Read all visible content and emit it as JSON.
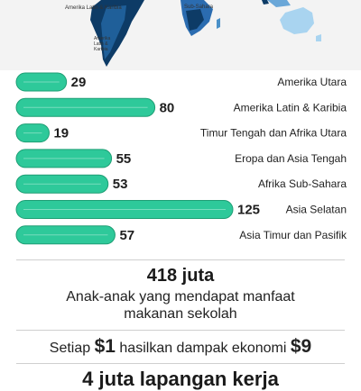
{
  "map": {
    "labels": [
      "Amerika Latin & Karibia",
      "Sub-Sahara",
      "Amerika Latin & Karibia"
    ]
  },
  "colors": {
    "bar": "#2ec99a",
    "bar_edge": "#1e9e74"
  },
  "chart_data": {
    "type": "bar",
    "orientation": "horizontal",
    "title": "",
    "xlabel": "",
    "ylabel": "",
    "categories": [
      "Amerika Utara",
      "Amerika Latin & Karibia",
      "Timur Tengah dan Afrika Utara",
      "Eropa dan Asia Tengah",
      "Afrika Sub-Sahara",
      "Asia Selatan",
      "Asia Timur dan Pasifik"
    ],
    "values": [
      29,
      80,
      19,
      55,
      53,
      125,
      57
    ],
    "xlim": [
      0,
      125
    ],
    "grid": false,
    "legend": "none"
  },
  "stats": {
    "beneficiaries_value": "418 juta",
    "beneficiaries_desc_line1": "Anak-anak yang mendapat manfaat",
    "beneficiaries_desc_line2": "makanan sekolah",
    "econ_prefix": "Setiap",
    "econ_input": "$1",
    "econ_middle": "hasilkan dampak ekonomi",
    "econ_output": "$9",
    "jobs": "4 juta lapangan kerja"
  }
}
